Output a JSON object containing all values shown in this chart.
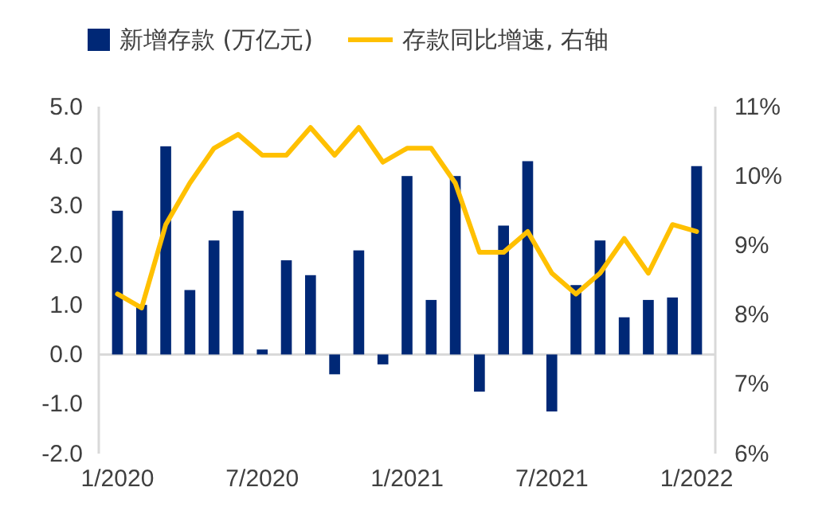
{
  "chart_data": {
    "type": "bar",
    "categories": [
      "1/2020",
      null,
      null,
      null,
      null,
      null,
      "7/2020",
      null,
      null,
      null,
      null,
      null,
      "1/2021",
      null,
      null,
      null,
      null,
      null,
      "7/2021",
      null,
      null,
      null,
      null,
      null,
      "1/2022"
    ],
    "series": [
      {
        "name": "新增存款 (万亿元)",
        "color": "#002876",
        "values": [
          2.9,
          1.0,
          4.2,
          1.3,
          2.3,
          2.9,
          0.1,
          1.9,
          1.6,
          -0.4,
          2.1,
          -0.2,
          3.6,
          1.1,
          3.6,
          -0.75,
          2.6,
          3.9,
          -1.15,
          1.4,
          2.3,
          0.75,
          1.1,
          1.15,
          3.8
        ]
      },
      {
        "name": "存款同比增速, 右轴",
        "type": "line",
        "axis": "y2",
        "color": "#ffc000",
        "values": [
          8.3,
          8.1,
          9.3,
          9.9,
          10.4,
          10.6,
          10.3,
          10.3,
          10.7,
          10.3,
          10.7,
          10.2,
          10.4,
          10.4,
          9.9,
          8.9,
          8.9,
          9.2,
          8.6,
          8.3,
          8.6,
          9.1,
          8.6,
          9.3,
          9.2
        ]
      }
    ],
    "ylim": [
      -2,
      5
    ],
    "yticks": [
      {
        "value": -2,
        "label": "-2.0"
      },
      {
        "value": -1,
        "label": "-1.0"
      },
      {
        "value": 0,
        "label": "0.0"
      },
      {
        "value": 1,
        "label": "1.0"
      },
      {
        "value": 2,
        "label": "2.0"
      },
      {
        "value": 3,
        "label": "3.0"
      },
      {
        "value": 4,
        "label": "4.0"
      },
      {
        "value": 5,
        "label": "5.0"
      }
    ],
    "y2lim": [
      6,
      11
    ],
    "y2ticks": [
      {
        "value": 6,
        "label": "6%"
      },
      {
        "value": 7,
        "label": "7%"
      },
      {
        "value": 8,
        "label": "8%"
      },
      {
        "value": 9,
        "label": "9%"
      },
      {
        "value": 10,
        "label": "10%"
      },
      {
        "value": 11,
        "label": "11%"
      }
    ],
    "legend": "top"
  }
}
